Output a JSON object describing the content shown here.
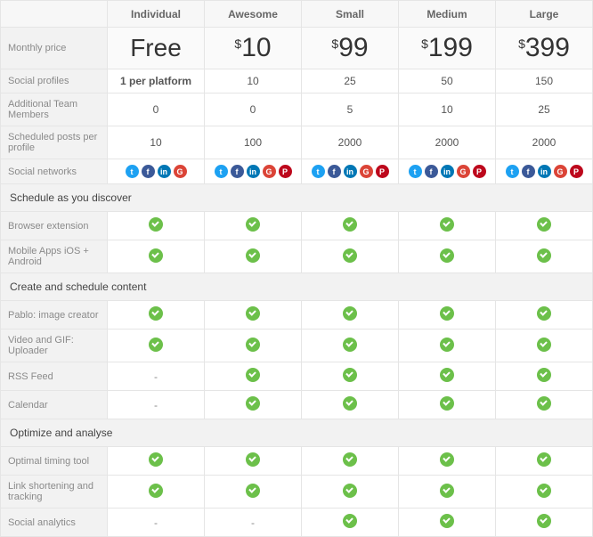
{
  "columns": [
    "Individual",
    "Awesome",
    "Small",
    "Medium",
    "Large"
  ],
  "priceRow": {
    "label": "Monthly price",
    "prices": [
      {
        "free": true,
        "text": "Free"
      },
      {
        "currency": "$",
        "amount": "10"
      },
      {
        "currency": "$",
        "amount": "99"
      },
      {
        "currency": "$",
        "amount": "199"
      },
      {
        "currency": "$",
        "amount": "399"
      }
    ]
  },
  "basicRows": [
    {
      "label": "Social profiles",
      "values": [
        "1 per platform",
        "10",
        "25",
        "50",
        "150"
      ],
      "boldFirst": true
    },
    {
      "label": "Additional Team Members",
      "values": [
        "0",
        "0",
        "5",
        "10",
        "25"
      ]
    },
    {
      "label": "Scheduled posts per profile",
      "values": [
        "10",
        "100",
        "2000",
        "2000",
        "2000"
      ]
    }
  ],
  "socialRow": {
    "label": "Social networks",
    "icons": {
      "twitter": {
        "color": "#1da1f2",
        "glyph": "t"
      },
      "facebook": {
        "color": "#3b5998",
        "glyph": "f"
      },
      "linkedin": {
        "color": "#0077b5",
        "glyph": "in"
      },
      "google": {
        "color": "#db4437",
        "glyph": "G"
      },
      "pinterest": {
        "color": "#bd081c",
        "glyph": "P"
      }
    },
    "perPlan": [
      [
        "twitter",
        "facebook",
        "linkedin",
        "google"
      ],
      [
        "twitter",
        "facebook",
        "linkedin",
        "google",
        "pinterest"
      ],
      [
        "twitter",
        "facebook",
        "linkedin",
        "google",
        "pinterest"
      ],
      [
        "twitter",
        "facebook",
        "linkedin",
        "google",
        "pinterest"
      ],
      [
        "twitter",
        "facebook",
        "linkedin",
        "google",
        "pinterest"
      ]
    ]
  },
  "sections": [
    {
      "title": "Schedule as you discover",
      "rows": [
        {
          "label": "Browser extension",
          "values": [
            "check",
            "check",
            "check",
            "check",
            "check"
          ]
        },
        {
          "label": "Mobile Apps iOS + Android",
          "values": [
            "check",
            "check",
            "check",
            "check",
            "check"
          ]
        }
      ]
    },
    {
      "title": "Create and schedule content",
      "rows": [
        {
          "label": "Pablo: image creator",
          "values": [
            "check",
            "check",
            "check",
            "check",
            "check"
          ]
        },
        {
          "label": "Video and GIF: Uploader",
          "values": [
            "check",
            "check",
            "check",
            "check",
            "check"
          ]
        },
        {
          "label": "RSS Feed",
          "values": [
            "dash",
            "check",
            "check",
            "check",
            "check"
          ]
        },
        {
          "label": "Calendar",
          "values": [
            "dash",
            "check",
            "check",
            "check",
            "check"
          ]
        }
      ]
    },
    {
      "title": "Optimize and analyse",
      "rows": [
        {
          "label": "Optimal timing tool",
          "values": [
            "check",
            "check",
            "check",
            "check",
            "check"
          ]
        },
        {
          "label": "Link shortening and tracking",
          "values": [
            "check",
            "check",
            "check",
            "check",
            "check"
          ]
        },
        {
          "label": "Social analytics",
          "values": [
            "dash",
            "dash",
            "check",
            "check",
            "check"
          ]
        }
      ]
    }
  ],
  "style": {
    "check_color": "#6cc04a",
    "dash": "-",
    "border_color": "#e5e5e5",
    "label_bg": "#f2f2f2",
    "header_bg": "#f7f7f7"
  }
}
